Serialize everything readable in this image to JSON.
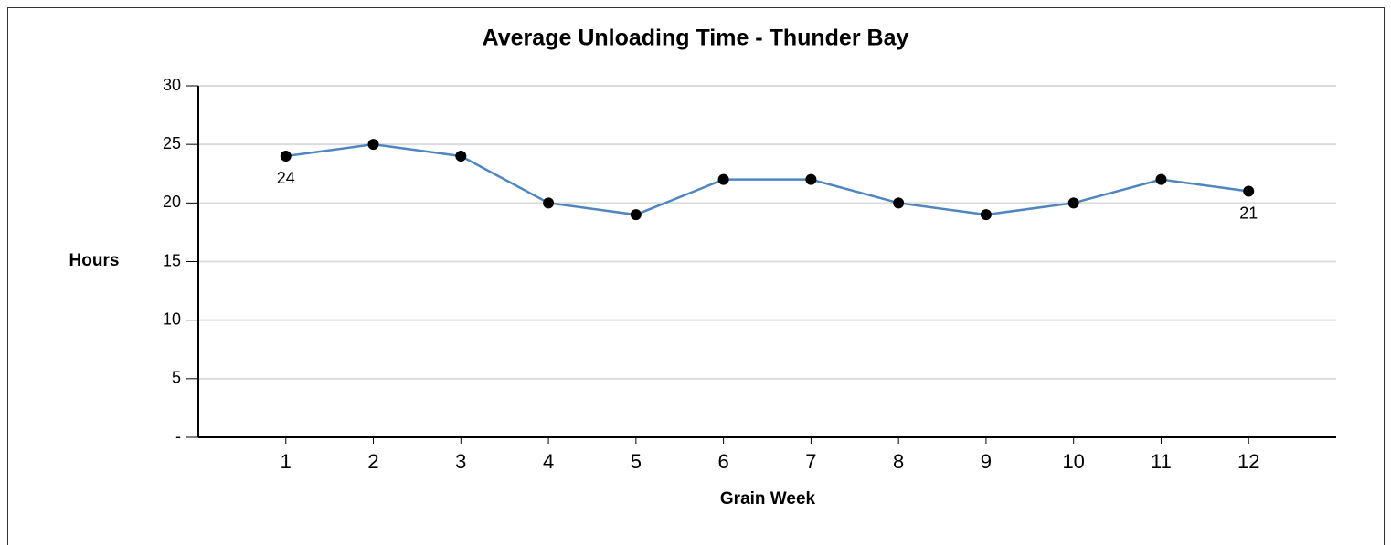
{
  "chart_data": {
    "type": "line",
    "title": "Average Unloading Time - Thunder Bay",
    "x_label": "Grain Week",
    "y_label": "Hours",
    "x": [
      1,
      2,
      3,
      4,
      5,
      6,
      7,
      8,
      9,
      10,
      11,
      12
    ],
    "values": [
      24,
      25,
      24,
      20,
      19,
      22,
      22,
      20,
      19,
      20,
      22,
      21
    ],
    "color": "#4f86c0",
    "marker_color": "#000000",
    "xlim": [
      0,
      13
    ],
    "xticks": [
      1,
      2,
      3,
      4,
      5,
      6,
      7,
      8,
      9,
      10,
      11,
      12
    ],
    "ylim": [
      0,
      30
    ],
    "yticks": [
      {
        "value": 0,
        "label": "-"
      },
      5,
      10,
      15,
      20,
      25,
      30
    ],
    "grid": true,
    "data_labels": "first-last"
  }
}
